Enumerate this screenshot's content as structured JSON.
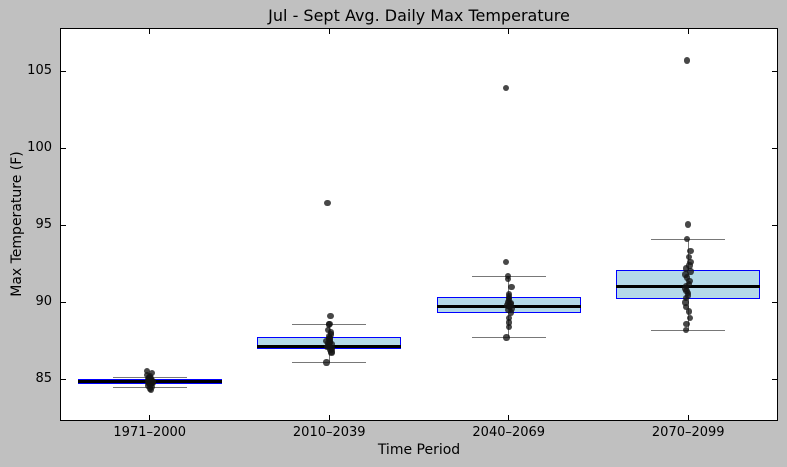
{
  "chart_data": {
    "type": "boxplot",
    "title": "Jul - Sept Avg. Daily Max Temperature",
    "xlabel": "Time Period",
    "ylabel": "Max Temperature (F)",
    "categories": [
      "1971–2000",
      "2010–2039",
      "2040–2069",
      "2070–2099"
    ],
    "yticks": [
      85,
      90,
      95,
      100,
      105
    ],
    "ylim": [
      82.3,
      107.8
    ],
    "grid": false,
    "legend": null,
    "colors": {
      "figure_background": "#c0c0c0",
      "plot_background": "#ffffff",
      "box_fill": "#b4d9e9",
      "box_edge": "#0000ff",
      "median": "#000000",
      "whisker": "#787878",
      "point": "#141414"
    },
    "groups": [
      {
        "label": "1971–2000",
        "whisker_low": 84.45,
        "q1": 84.7,
        "median": 84.85,
        "q3": 85.0,
        "whisker_high": 85.15,
        "points": [
          85.55,
          85.4,
          85.3,
          85.2,
          85.15,
          85.1,
          85.05,
          85.0,
          85.0,
          84.95,
          84.9,
          84.9,
          84.85,
          84.85,
          84.8,
          84.8,
          84.75,
          84.7,
          84.65,
          84.6,
          84.5,
          84.4,
          84.3
        ]
      },
      {
        "label": "2010–2039",
        "whisker_low": 86.1,
        "q1": 86.95,
        "median": 87.15,
        "q3": 87.75,
        "whisker_high": 88.55,
        "points": [
          96.45,
          89.1,
          88.6,
          88.55,
          88.2,
          88.05,
          87.9,
          87.8,
          87.7,
          87.6,
          87.5,
          87.45,
          87.4,
          87.35,
          87.3,
          87.2,
          87.15,
          87.1,
          87.0,
          86.9,
          86.8,
          86.7,
          86.1
        ]
      },
      {
        "label": "2040–2069",
        "whisker_low": 87.73,
        "q1": 89.29,
        "median": 89.7,
        "q3": 90.37,
        "whisker_high": 91.67,
        "points": [
          103.9,
          92.6,
          91.7,
          91.5,
          91.0,
          90.55,
          90.4,
          90.3,
          90.2,
          90.1,
          90.0,
          89.95,
          89.9,
          89.8,
          89.75,
          89.7,
          89.6,
          89.5,
          89.35,
          89.0,
          88.7,
          88.4,
          87.73
        ]
      },
      {
        "label": "2070–2099",
        "whisker_low": 88.2,
        "q1": 90.2,
        "median": 91.0,
        "q3": 92.1,
        "whisker_high": 94.1,
        "points": [
          105.7,
          95.05,
          94.1,
          93.35,
          92.95,
          92.6,
          92.4,
          92.2,
          92.0,
          91.8,
          91.6,
          91.4,
          91.2,
          91.05,
          90.9,
          90.75,
          90.6,
          90.45,
          90.3,
          90.0,
          89.7,
          89.4,
          89.0,
          88.6,
          88.2
        ]
      }
    ]
  }
}
